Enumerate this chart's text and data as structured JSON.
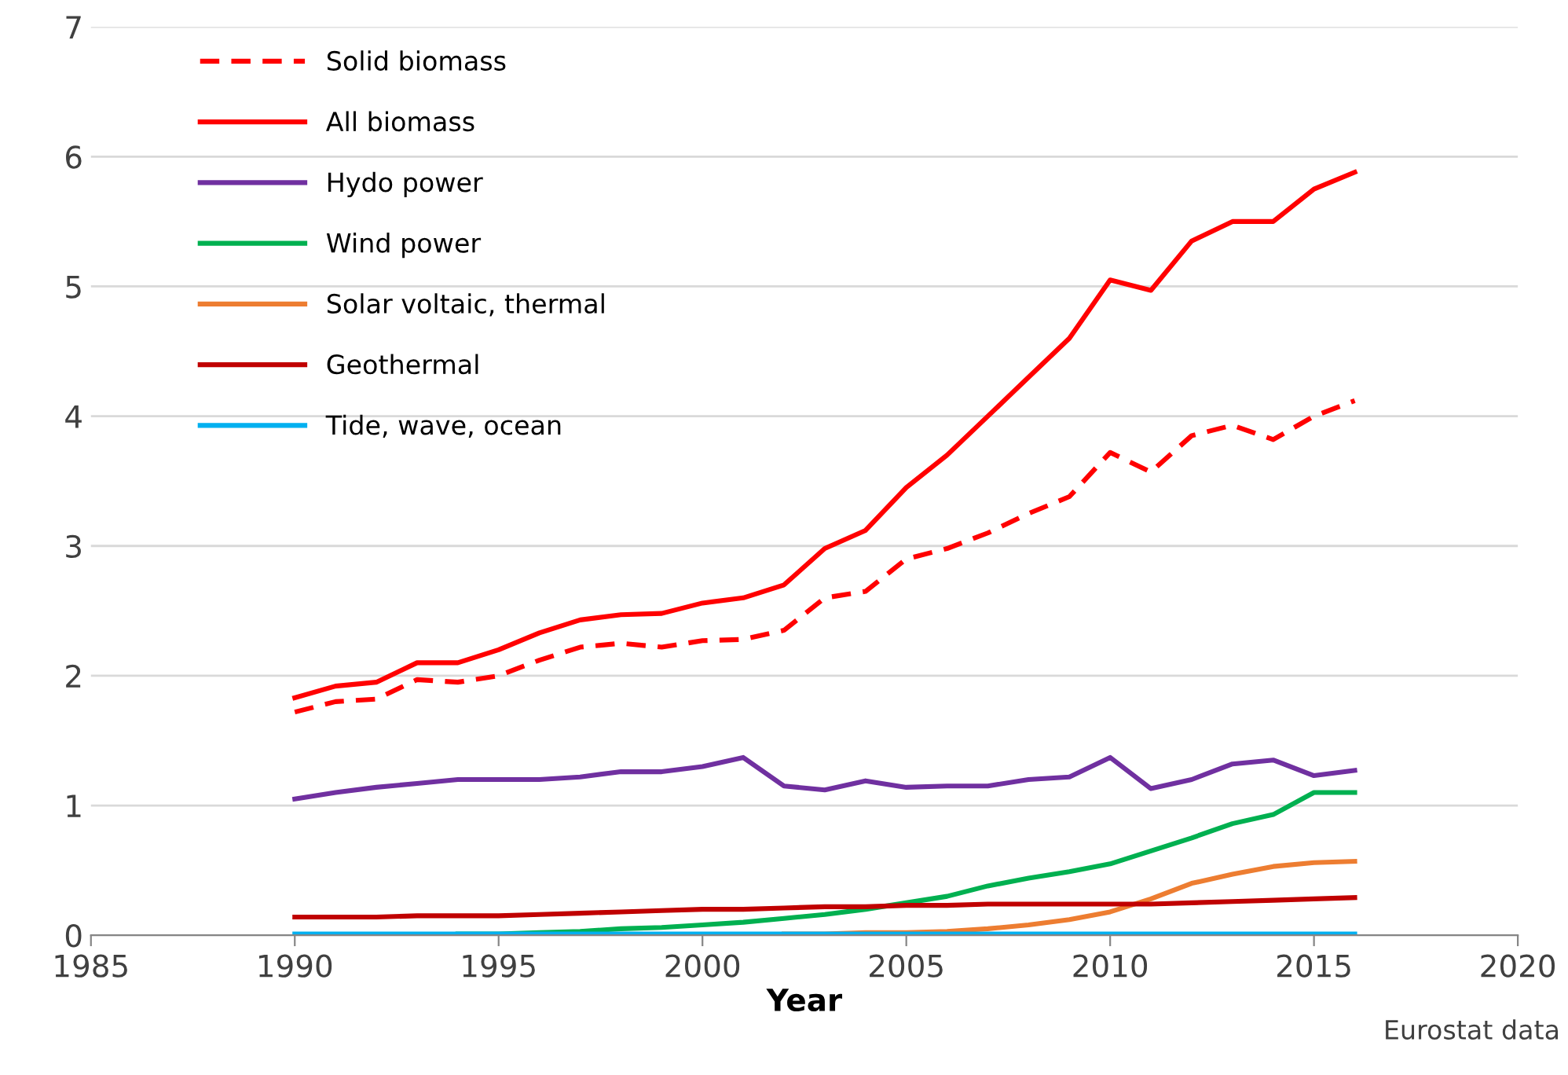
{
  "chart_data": {
    "type": "line",
    "xlabel": "Year",
    "annotations": [
      "Eurostat data"
    ],
    "x": [
      1990,
      1991,
      1992,
      1993,
      1994,
      1995,
      1996,
      1997,
      1998,
      1999,
      2000,
      2001,
      2002,
      2003,
      2004,
      2005,
      2006,
      2007,
      2008,
      2009,
      2010,
      2011,
      2012,
      2013,
      2014,
      2015,
      2016
    ],
    "xlim": [
      1985,
      2020
    ],
    "xticks": [
      1985,
      1990,
      1995,
      2000,
      2005,
      2010,
      2015,
      2020
    ],
    "ylim": [
      0,
      7
    ],
    "yticks": [
      0,
      1,
      2,
      3,
      4,
      5,
      6,
      7
    ],
    "grid": "y",
    "legend": "top left",
    "series": [
      {
        "name": "Solid biomass",
        "color": "#ff0000",
        "line_style": "dashed",
        "values": [
          1.72,
          1.8,
          1.82,
          1.97,
          1.95,
          2.0,
          2.12,
          2.22,
          2.25,
          2.22,
          2.27,
          2.28,
          2.35,
          2.6,
          2.65,
          2.9,
          2.98,
          3.1,
          3.25,
          3.38,
          3.72,
          3.57,
          3.85,
          3.93,
          3.82,
          4.0,
          4.12
        ]
      },
      {
        "name": "All biomass",
        "color": "#ff0000",
        "line_style": "solid",
        "values": [
          1.83,
          1.92,
          1.95,
          2.1,
          2.1,
          2.2,
          2.33,
          2.43,
          2.47,
          2.48,
          2.56,
          2.6,
          2.7,
          2.98,
          3.12,
          3.45,
          3.7,
          4.0,
          4.3,
          4.6,
          5.05,
          4.97,
          5.35,
          5.5,
          5.5,
          5.75,
          5.88
        ]
      },
      {
        "name": "Hydo power",
        "color": "#7030a0",
        "line_style": "solid",
        "values": [
          1.05,
          1.1,
          1.14,
          1.17,
          1.2,
          1.2,
          1.2,
          1.22,
          1.26,
          1.26,
          1.3,
          1.37,
          1.15,
          1.12,
          1.19,
          1.14,
          1.15,
          1.15,
          1.2,
          1.22,
          1.37,
          1.13,
          1.2,
          1.32,
          1.35,
          1.23,
          1.27
        ]
      },
      {
        "name": "Wind power",
        "color": "#00b050",
        "line_style": "solid",
        "values": [
          null,
          null,
          null,
          null,
          0.01,
          0.01,
          0.02,
          0.03,
          0.05,
          0.06,
          0.08,
          0.1,
          0.13,
          0.16,
          0.2,
          0.25,
          0.3,
          0.38,
          0.44,
          0.49,
          0.55,
          0.65,
          0.75,
          0.86,
          0.93,
          1.1,
          1.1
        ]
      },
      {
        "name": "Solar voltaic, thermal",
        "color": "#ed7d31",
        "line_style": "solid",
        "values": [
          null,
          null,
          null,
          null,
          null,
          null,
          null,
          null,
          null,
          null,
          null,
          null,
          0.01,
          0.01,
          0.02,
          0.02,
          0.03,
          0.05,
          0.08,
          0.12,
          0.18,
          0.28,
          0.4,
          0.47,
          0.53,
          0.56,
          0.57
        ]
      },
      {
        "name": "Geothermal",
        "color": "#c00000",
        "line_style": "solid",
        "values": [
          0.14,
          0.14,
          0.14,
          0.15,
          0.15,
          0.15,
          0.16,
          0.17,
          0.18,
          0.19,
          0.2,
          0.2,
          0.21,
          0.22,
          0.22,
          0.23,
          0.23,
          0.24,
          0.24,
          0.24,
          0.24,
          0.24,
          0.25,
          0.26,
          0.27,
          0.28,
          0.29
        ]
      },
      {
        "name": "Tide, wave, ocean",
        "color": "#00b0f0",
        "line_style": "solid",
        "values": [
          0.01,
          0.01,
          0.01,
          0.01,
          0.01,
          0.01,
          0.01,
          0.01,
          0.01,
          0.01,
          0.01,
          0.01,
          0.01,
          0.01,
          0.01,
          0.01,
          0.01,
          0.01,
          0.01,
          0.01,
          0.01,
          0.01,
          0.01,
          0.01,
          0.01,
          0.01,
          0.01
        ]
      }
    ]
  }
}
